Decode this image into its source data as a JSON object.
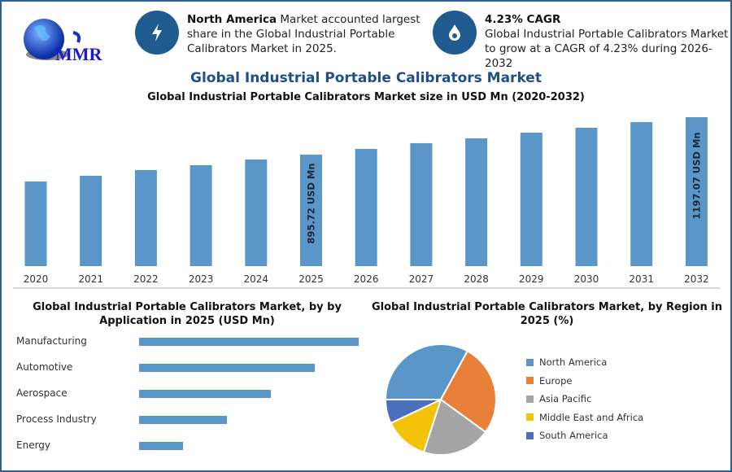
{
  "logo": {
    "text": "MMR"
  },
  "highlights": [
    {
      "icon": "lightning-icon",
      "bold": "North America",
      "text": " Market accounted largest share in the Global Industrial Portable Calibrators Market in 2025."
    },
    {
      "icon": "flame-drop-icon",
      "bold": "4.23% CAGR",
      "text": "Global Industrial Portable Calibrators Market to grow at a CAGR of 4.23% during 2026-2032"
    }
  ],
  "title": "Global Industrial Portable Calibrators Market",
  "colors": {
    "bar": "#5b96c8",
    "accent": "#1f5b8f",
    "title": "#1f4e8a"
  },
  "chart_data": [
    {
      "type": "bar",
      "title": "Global Industrial Portable Calibrators Market size in USD Mn (2020-2032)",
      "categories": [
        "2020",
        "2021",
        "2022",
        "2023",
        "2024",
        "2025",
        "2026",
        "2027",
        "2028",
        "2029",
        "2030",
        "2031",
        "2032"
      ],
      "values": [
        680,
        726,
        772,
        811,
        857,
        895.72,
        942,
        988,
        1027,
        1073,
        1112,
        1158,
        1197.07
      ],
      "data_labels": {
        "2025": "895.72 USD Mn",
        "2032": "1197.07 USD Mn"
      },
      "ylim": [
        0,
        1197.07
      ],
      "grid": false
    },
    {
      "type": "bar",
      "orientation": "horizontal",
      "title": "Global Industrial Portable Calibrators Market, by by Application in 2025 (USD Mn)",
      "categories": [
        "Manufacturing",
        "Automotive",
        "Aerospace",
        "Process Industry",
        "Energy"
      ],
      "values": [
        1.0,
        0.8,
        0.6,
        0.4,
        0.2
      ],
      "grid": false
    },
    {
      "type": "pie",
      "title": "Global Industrial Portable Calibrators Market, by Region in 2025 (%)",
      "categories": [
        "North America",
        "Europe",
        "Asia Pacific",
        "Middle East and Africa",
        "South America"
      ],
      "values": [
        33,
        27,
        20,
        13,
        7
      ],
      "colors": [
        "#5b96c8",
        "#e8803a",
        "#a5a5a5",
        "#f5c20a",
        "#4a6fbd"
      ],
      "legend": "right"
    }
  ]
}
